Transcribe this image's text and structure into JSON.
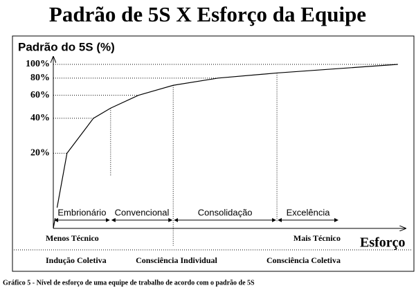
{
  "chart_data": {
    "type": "line",
    "title": "Padrão de 5S X Esforço da Equipe",
    "y_label": "Padrão do 5S (%)",
    "x_label": "Esforço",
    "x": [
      0,
      3.9,
      11.4,
      16.3,
      24.2,
      34.1,
      46.9,
      63.6,
      98
    ],
    "values": [
      0,
      20,
      40,
      48,
      60,
      71,
      80,
      87,
      100
    ],
    "color": "#000000",
    "xlim": [
      0,
      100
    ],
    "ylim": [
      0,
      100
    ],
    "yticks": [
      {
        "value": 20,
        "label": "20%"
      },
      {
        "value": 40,
        "label": "40%"
      },
      {
        "value": 60,
        "label": "60%"
      },
      {
        "value": 80,
        "label": "80%"
      },
      {
        "value": 100,
        "label": "100%"
      }
    ],
    "stages": [
      "Embrionário",
      "Convencional",
      "Consolidação",
      "Excelência"
    ],
    "stage_bounds": [
      0,
      16.3,
      34.1,
      63.6,
      81.3
    ],
    "axis_left_label": "Menos Técnico",
    "axis_right_label": "Mais Técnico",
    "phases": [
      "Indução Coletiva",
      "Consciência Individual",
      "Consciência Coletiva"
    ],
    "caption": "Gráfico 5 - Nível de esforço de uma equipe de trabalho de acordo com o padrão de 5S"
  }
}
